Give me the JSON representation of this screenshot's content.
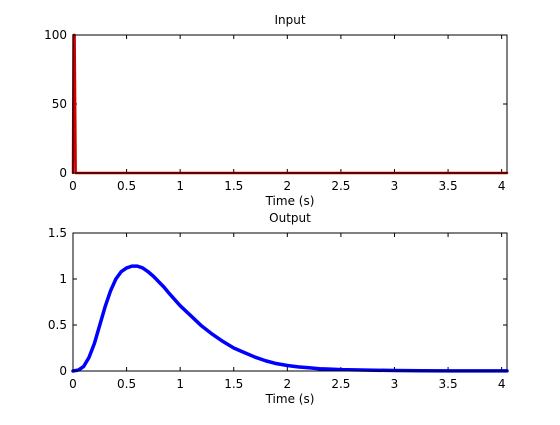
{
  "chart_data": [
    {
      "type": "line",
      "title": "Input",
      "xlabel": "Time (s)",
      "ylabel": "",
      "xlim": [
        0,
        4.05
      ],
      "ylim": [
        0,
        100
      ],
      "xticks": [
        0,
        0.5,
        1,
        1.5,
        2,
        2.5,
        3,
        3.5,
        4
      ],
      "xtick_labels": [
        "0",
        "0.5",
        "1",
        "1.5",
        "2",
        "2.5",
        "3",
        "3.5",
        "4"
      ],
      "yticks": [
        0,
        50,
        100
      ],
      "ytick_labels": [
        "0",
        "50",
        "100"
      ],
      "grid": false,
      "series": [
        {
          "color": "#cc0000",
          "x": [
            0,
            0.005,
            0.01,
            0.015,
            0.02,
            0.025,
            0.03,
            4.05
          ],
          "y": [
            0,
            100,
            100,
            100,
            50,
            0,
            0,
            0
          ]
        }
      ]
    },
    {
      "type": "line",
      "title": "Output",
      "xlabel": "Time (s)",
      "ylabel": "",
      "xlim": [
        0,
        4.05
      ],
      "ylim": [
        0,
        1.5
      ],
      "xticks": [
        0,
        0.5,
        1,
        1.5,
        2,
        2.5,
        3,
        3.5,
        4
      ],
      "xtick_labels": [
        "0",
        "0.5",
        "1",
        "1.5",
        "2",
        "2.5",
        "3",
        "3.5",
        "4"
      ],
      "yticks": [
        0,
        0.5,
        1,
        1.5
      ],
      "ytick_labels": [
        "0",
        "0.5",
        "1",
        "1.5"
      ],
      "grid": false,
      "series": [
        {
          "color": "#0000ff",
          "x": [
            0,
            0.05,
            0.1,
            0.15,
            0.2,
            0.25,
            0.3,
            0.35,
            0.4,
            0.45,
            0.5,
            0.55,
            0.6,
            0.65,
            0.7,
            0.75,
            0.8,
            0.85,
            0.9,
            1.0,
            1.1,
            1.2,
            1.3,
            1.4,
            1.5,
            1.6,
            1.7,
            1.8,
            1.9,
            2.0,
            2.1,
            2.2,
            2.3,
            2.4,
            2.5,
            2.75,
            3.0,
            3.25,
            3.5,
            3.75,
            4.0,
            4.05
          ],
          "y": [
            0,
            0.01,
            0.05,
            0.15,
            0.3,
            0.5,
            0.7,
            0.87,
            1.0,
            1.08,
            1.12,
            1.14,
            1.14,
            1.12,
            1.08,
            1.03,
            0.97,
            0.91,
            0.84,
            0.71,
            0.6,
            0.49,
            0.4,
            0.32,
            0.25,
            0.2,
            0.15,
            0.11,
            0.08,
            0.06,
            0.045,
            0.035,
            0.025,
            0.02,
            0.015,
            0.01,
            0.005,
            0.003,
            0.002,
            0.001,
            0.001,
            0.001
          ]
        }
      ]
    }
  ]
}
